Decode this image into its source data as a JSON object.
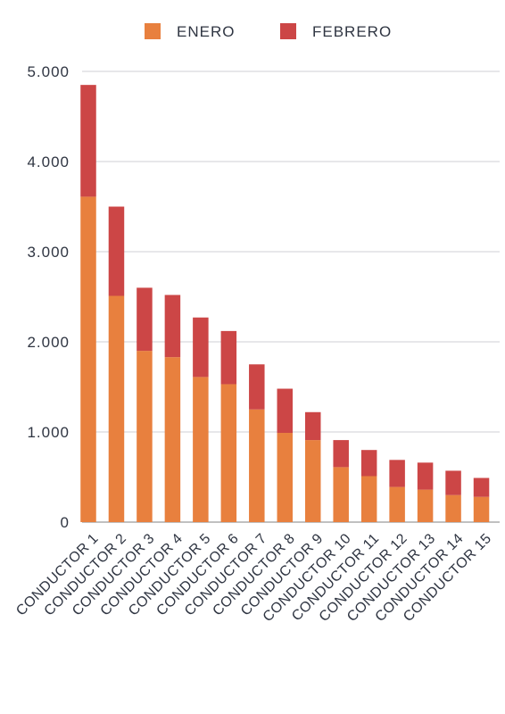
{
  "chart_data": {
    "type": "bar",
    "stacked": true,
    "title": "",
    "xlabel": "",
    "ylabel": "",
    "ylim": [
      0,
      5000
    ],
    "yticks": [
      0,
      1000,
      2000,
      3000,
      4000,
      5000
    ],
    "ytick_labels": [
      "0",
      "1.000",
      "2.000",
      "3.000",
      "4.000",
      "5.000"
    ],
    "grid": true,
    "legend_position": "top-center",
    "categories": [
      "CONDUCTOR 1",
      "CONDUCTOR 2",
      "CONDUCTOR 3",
      "CONDUCTOR 4",
      "CONDUCTOR 5",
      "CONDUCTOR 6",
      "CONDUCTOR 7",
      "CONDUCTOR 8",
      "CONDUCTOR 9",
      "CONDUCTOR 10",
      "CONDUCTOR 11",
      "CONDUCTOR 12",
      "CONDUCTOR 13",
      "CONDUCTOR 14",
      "CONDUCTOR 15"
    ],
    "series": [
      {
        "name": "ENERO",
        "color": "#e8803e",
        "values": [
          3610,
          2510,
          1900,
          1830,
          1610,
          1530,
          1250,
          990,
          910,
          610,
          510,
          390,
          360,
          300,
          280
        ]
      },
      {
        "name": "FEBRERO",
        "color": "#cc4646",
        "values": [
          1240,
          990,
          700,
          690,
          660,
          590,
          500,
          490,
          310,
          300,
          290,
          300,
          300,
          270,
          210
        ]
      }
    ]
  },
  "colors": {
    "grid": "#cfcfd4",
    "axis": "#9a9a9a",
    "text": "#2f3542"
  }
}
